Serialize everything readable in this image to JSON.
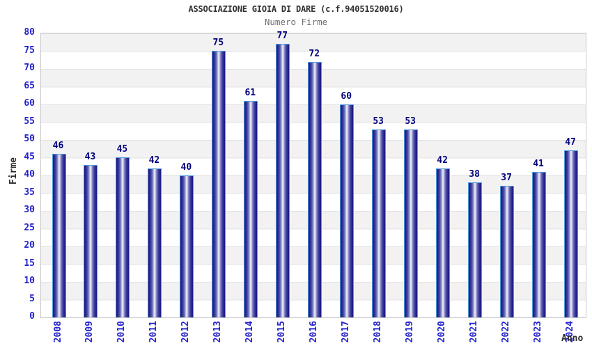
{
  "chart_data": {
    "type": "bar",
    "title": "ASSOCIAZIONE GIOIA DI DARE (c.f.94051520016)",
    "subtitle": "Numero Firme",
    "xlabel": "Anno",
    "ylabel": "Firme",
    "categories": [
      "2008",
      "2009",
      "2010",
      "2011",
      "2012",
      "2013",
      "2014",
      "2015",
      "2016",
      "2017",
      "2018",
      "2019",
      "2020",
      "2021",
      "2022",
      "2023",
      "2024"
    ],
    "values": [
      46,
      43,
      45,
      42,
      40,
      75,
      61,
      77,
      72,
      60,
      53,
      53,
      42,
      38,
      37,
      41,
      47
    ],
    "ylim": [
      0,
      80
    ],
    "ytick_step": 5,
    "grid": true,
    "legend_position": "none",
    "colors": {
      "bar_dark": "#191980",
      "bar_light": "#e8ecf8",
      "bar_border": "#4f9fe0",
      "tick_text": "#2222cc",
      "value_label": "#00007d",
      "title_text": "#303030",
      "subtitle_text": "#6e6e6e",
      "axis_title_text": "#2f2f2f",
      "band_gray": "#f2f2f2",
      "grid_line": "#e2e2e2",
      "plot_border": "#c9c9c9"
    }
  }
}
